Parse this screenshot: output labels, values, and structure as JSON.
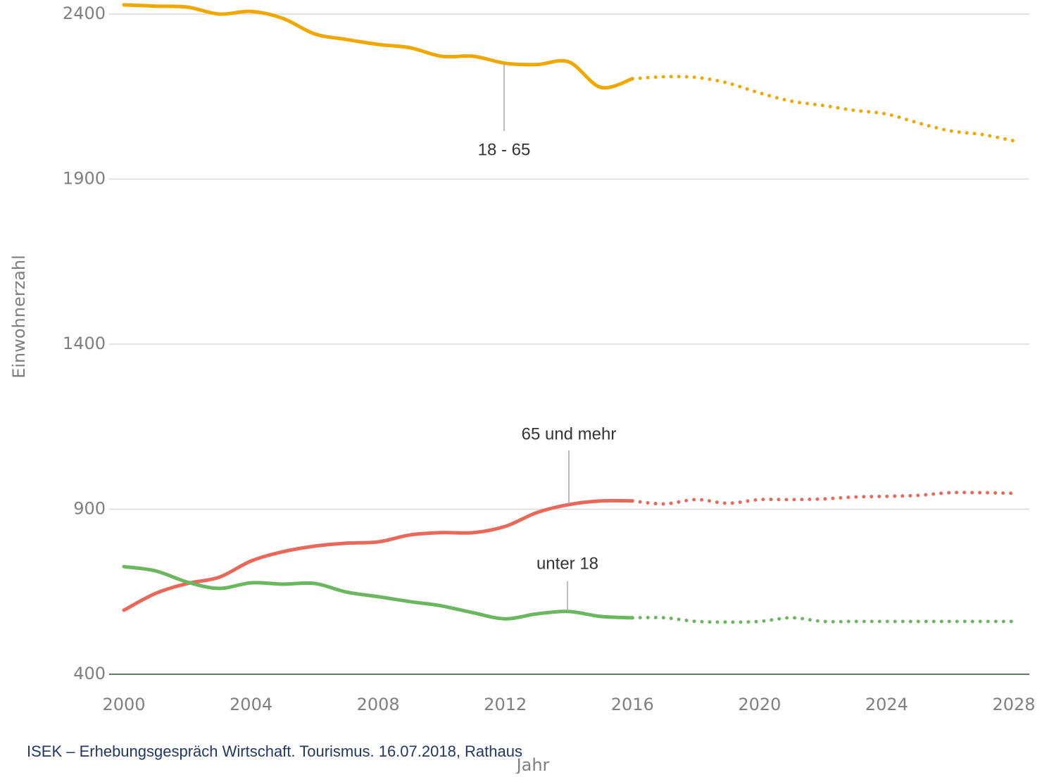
{
  "chart_data": {
    "type": "line",
    "x_label": "Jahr",
    "y_label": "Einwohnerzahl",
    "footer": "ISEK – Erhebungsgespräch Wirtschaft. Tourismus. 16.07.2018, Rathaus",
    "x": [
      2000,
      2001,
      2002,
      2003,
      2004,
      2005,
      2006,
      2007,
      2008,
      2009,
      2010,
      2011,
      2012,
      2013,
      2014,
      2015,
      2016,
      2017,
      2018,
      2019,
      2020,
      2021,
      2022,
      2023,
      2024,
      2025,
      2026,
      2027,
      2028
    ],
    "forecast_from": 2016,
    "series": [
      {
        "name": "18 - 65",
        "color": "#f0a800",
        "values": [
          2428,
          2424,
          2421,
          2400,
          2408,
          2387,
          2340,
          2323,
          2308,
          2298,
          2272,
          2272,
          2251,
          2247,
          2255,
          2178,
          2204,
          2210,
          2208,
          2191,
          2161,
          2136,
          2123,
          2108,
          2097,
          2070,
          2046,
          2035,
          2016
        ]
      },
      {
        "name": "65 und mehr",
        "color": "#e8695a",
        "values": [
          594,
          645,
          675,
          694,
          743,
          771,
          788,
          797,
          801,
          822,
          829,
          829,
          848,
          890,
          914,
          925,
          925,
          916,
          929,
          918,
          929,
          929,
          931,
          937,
          939,
          942,
          950,
          950,
          948
        ]
      },
      {
        "name": "unter 18",
        "color": "#6ab760",
        "values": [
          726,
          713,
          679,
          660,
          677,
          673,
          675,
          649,
          635,
          620,
          607,
          586,
          568,
          583,
          590,
          575,
          571,
          571,
          560,
          558,
          560,
          571,
          560,
          560,
          560,
          560,
          560,
          560,
          560
        ]
      }
    ],
    "xlim": [
      2000,
      2028
    ],
    "xticks": [
      2000,
      2004,
      2008,
      2012,
      2016,
      2020,
      2024,
      2028
    ],
    "ylim": [
      400,
      2440
    ],
    "yticks": [
      400,
      900,
      1400,
      1900,
      2400
    ],
    "grid": true
  }
}
